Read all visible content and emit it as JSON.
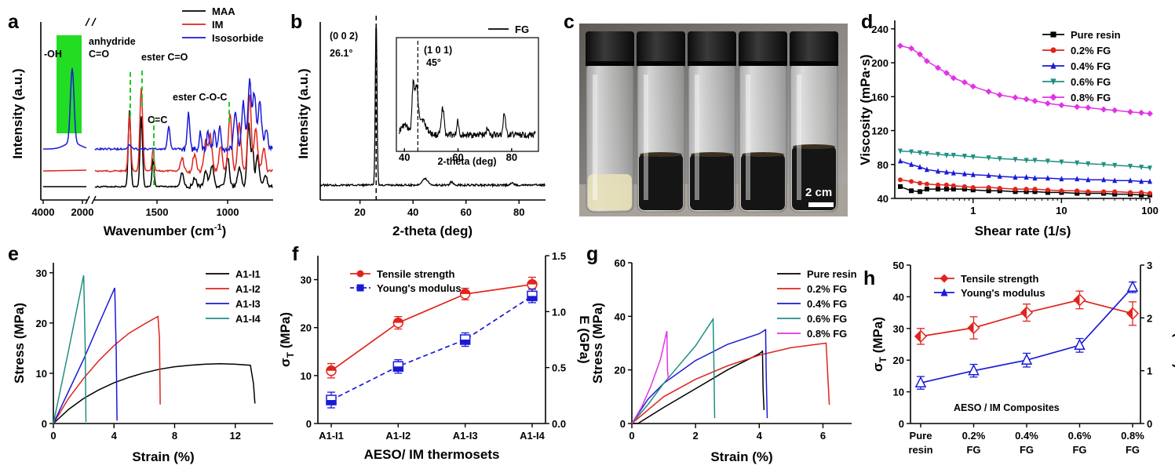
{
  "colors": {
    "black": "#000000",
    "red": "#e0241b",
    "blue": "#1a1ad6",
    "teal": "#1f8f82",
    "magenta": "#e233e6",
    "green_box": "#22dd22",
    "green_dash": "#22cc22"
  },
  "panels": {
    "a": {
      "letter": "a"
    },
    "b": {
      "letter": "b"
    },
    "c": {
      "letter": "c"
    },
    "d": {
      "letter": "d"
    },
    "e": {
      "letter": "e"
    },
    "f": {
      "letter": "f"
    },
    "g": {
      "letter": "g"
    },
    "h": {
      "letter": "h"
    }
  },
  "photo": {
    "scale_label": "2 cm",
    "vials": 5
  },
  "chart_data": [
    {
      "id": "a",
      "type": "line",
      "xlabel": "Wavenumber (cm-1)",
      "ylabel": "Intensity (a.u.)",
      "x_ticks": [
        "4000",
        "2000",
        "1500",
        "1000"
      ],
      "x_break": true,
      "reversed_x": true,
      "series": [
        {
          "name": "MAA"
        },
        {
          "name": "IM"
        },
        {
          "name": "Isosorbide"
        }
      ],
      "annotations": [
        "-OH",
        "anhydride",
        "C=O",
        "ester C=O",
        "ester C-O-C",
        "C=C"
      ]
    },
    {
      "id": "b",
      "type": "line",
      "xlabel": "2-theta (deg)",
      "ylabel": "Intensity (a.u.)",
      "xlim": [
        5,
        90
      ],
      "x_ticks": [
        "20",
        "40",
        "60",
        "80"
      ],
      "series": [
        {
          "name": "FG"
        }
      ],
      "peaks": [
        26.1,
        44.5,
        54.5,
        77.5
      ],
      "annotations": [
        "(0 0 2)",
        "26.1°"
      ],
      "inset": {
        "xlabel": "2-theta (deg)",
        "x_ticks": [
          "40",
          "60",
          "80"
        ],
        "annotations": [
          "(1 0 1)",
          "45°"
        ]
      }
    },
    {
      "id": "d",
      "type": "line",
      "xlabel": "Shear rate (1/s)",
      "ylabel": "Viscosity (mPa·s)",
      "xscale": "log",
      "xlim": [
        0.13,
        100
      ],
      "ylim": [
        40,
        250
      ],
      "x_ticks": [
        "1",
        "10",
        "100"
      ],
      "y_ticks": [
        "40",
        "80",
        "120",
        "160",
        "200",
        "240"
      ],
      "x": [
        0.15,
        0.2,
        0.25,
        0.3,
        0.4,
        0.5,
        0.6,
        0.8,
        1,
        1.5,
        2,
        3,
        4,
        5,
        7,
        10,
        15,
        20,
        30,
        40,
        60,
        80,
        100
      ],
      "series": [
        {
          "name": "Pure resin",
          "values": [
            54,
            49,
            48,
            51,
            51,
            51,
            51,
            51,
            50,
            49,
            49,
            48,
            48,
            48,
            47,
            47,
            46,
            46,
            46,
            45,
            45,
            44,
            44
          ]
        },
        {
          "name": "0.2% FG",
          "values": [
            62,
            60,
            58,
            57,
            56,
            56,
            55,
            54,
            53,
            53,
            52,
            51,
            51,
            51,
            50,
            49,
            49,
            48,
            48,
            48,
            47,
            47,
            46
          ]
        },
        {
          "name": "0.4% FG",
          "values": [
            84,
            80,
            77,
            74,
            72,
            71,
            70,
            69,
            68,
            67,
            66,
            65,
            65,
            64,
            64,
            63,
            63,
            62,
            62,
            61,
            61,
            60,
            60
          ]
        },
        {
          "name": "0.6% FG",
          "values": [
            96,
            95,
            94,
            93,
            92,
            91,
            91,
            90,
            89,
            88,
            87,
            86,
            85,
            85,
            84,
            83,
            82,
            81,
            80,
            79,
            78,
            77,
            76
          ]
        },
        {
          "name": "0.8% FG",
          "values": [
            220,
            217,
            210,
            202,
            194,
            188,
            182,
            177,
            172,
            166,
            162,
            159,
            157,
            155,
            152,
            150,
            148,
            147,
            145,
            144,
            142,
            141,
            140
          ]
        }
      ]
    },
    {
      "id": "e",
      "type": "line",
      "xlabel": "Strain (%)",
      "ylabel": "Stress (MPa)",
      "xlim": [
        0,
        14.5
      ],
      "ylim": [
        0,
        32
      ],
      "x_ticks": [
        "0",
        "4",
        "8",
        "12"
      ],
      "y_ticks": [
        "0",
        "10",
        "20",
        "30"
      ],
      "series": [
        {
          "name": "A1-I1",
          "points": [
            [
              0,
              0
            ],
            [
              1,
              2.8
            ],
            [
              2,
              5
            ],
            [
              3,
              6.7
            ],
            [
              4,
              8.1
            ],
            [
              5,
              9.2
            ],
            [
              6,
              10.1
            ],
            [
              7,
              10.8
            ],
            [
              8,
              11.3
            ],
            [
              9,
              11.6
            ],
            [
              10,
              11.8
            ],
            [
              11,
              11.9
            ],
            [
              12,
              11.8
            ],
            [
              13,
              11.6
            ],
            [
              13.2,
              8
            ],
            [
              13.3,
              4
            ]
          ]
        },
        {
          "name": "A1-I2",
          "points": [
            [
              0,
              0
            ],
            [
              1,
              5
            ],
            [
              2,
              9
            ],
            [
              3,
              12.5
            ],
            [
              4,
              15.5
            ],
            [
              5,
              18
            ],
            [
              6,
              19.8
            ],
            [
              6.9,
              21.3
            ],
            [
              7,
              17
            ],
            [
              7.05,
              3.8
            ]
          ]
        },
        {
          "name": "A1-I3",
          "points": [
            [
              0,
              0
            ],
            [
              1,
              6.4
            ],
            [
              2,
              12.8
            ],
            [
              3,
              19.8
            ],
            [
              4.05,
              27
            ],
            [
              4.15,
              14
            ],
            [
              4.2,
              0.6
            ]
          ]
        },
        {
          "name": "A1-I4",
          "points": [
            [
              0,
              0
            ],
            [
              1,
              14.5
            ],
            [
              2,
              29.5
            ],
            [
              2.1,
              15
            ],
            [
              2.15,
              0.3
            ]
          ]
        }
      ]
    },
    {
      "id": "f",
      "type": "line",
      "xlabel": "AESO/ IM thermosets",
      "ylabel_left": "σT (MPa)",
      "ylabel_right": "E (GPa)",
      "categories": [
        "A1-I1",
        "A1-I2",
        "A1-I3",
        "A1-I4"
      ],
      "ylim_left": [
        0,
        35
      ],
      "ylim_right": [
        0,
        1.5
      ],
      "y_ticks_left": [
        "0",
        "10",
        "20",
        "30"
      ],
      "y_ticks_right": [
        "0.0",
        "0.5",
        "1.0",
        "1.5"
      ],
      "series": [
        {
          "name": "Tensile strength",
          "axis": "left",
          "values": [
            11,
            21,
            27,
            29
          ],
          "errors": [
            1.5,
            1.3,
            1.2,
            1.5
          ]
        },
        {
          "name": "Young's modulus",
          "axis": "right",
          "values": [
            0.21,
            0.51,
            0.75,
            1.14
          ],
          "errors": [
            0.07,
            0.06,
            0.06,
            0.06
          ]
        }
      ]
    },
    {
      "id": "g",
      "type": "line",
      "xlabel": "Strain (%)",
      "ylabel": "Stress (MPa)",
      "xlim": [
        0,
        6.9
      ],
      "ylim": [
        0,
        60
      ],
      "x_ticks": [
        "0",
        "2",
        "4",
        "6"
      ],
      "y_ticks": [
        "0",
        "20",
        "40",
        "60"
      ],
      "series": [
        {
          "name": "Pure resin",
          "points": [
            [
              0,
              0
            ],
            [
              0.2,
              0.1
            ],
            [
              1,
              6
            ],
            [
              2,
              13
            ],
            [
              3,
              20
            ],
            [
              4,
              26
            ],
            [
              4.1,
              27
            ],
            [
              4.12,
              13
            ],
            [
              4.15,
              5
            ]
          ]
        },
        {
          "name": "0.2% FG",
          "points": [
            [
              0,
              0
            ],
            [
              1,
              10
            ],
            [
              2,
              16.5
            ],
            [
              3,
              21.5
            ],
            [
              4,
              25.5
            ],
            [
              5,
              28.3
            ],
            [
              6.1,
              30
            ],
            [
              6.15,
              18
            ],
            [
              6.2,
              7
            ]
          ]
        },
        {
          "name": "0.4% FG",
          "points": [
            [
              0,
              0
            ],
            [
              0.5,
              9
            ],
            [
              1,
              15
            ],
            [
              2,
              23.5
            ],
            [
              3,
              29.5
            ],
            [
              4,
              33.5
            ],
            [
              4.2,
              35
            ],
            [
              4.22,
              18
            ],
            [
              4.25,
              2
            ]
          ]
        },
        {
          "name": "0.6% FG",
          "points": [
            [
              0,
              0
            ],
            [
              0.5,
              7
            ],
            [
              1,
              15
            ],
            [
              1.5,
              22
            ],
            [
              2,
              29
            ],
            [
              2.55,
              39
            ],
            [
              2.58,
              20
            ],
            [
              2.6,
              2
            ]
          ]
        },
        {
          "name": "0.8% FG",
          "points": [
            [
              0,
              0
            ],
            [
              0.3,
              6
            ],
            [
              0.6,
              14
            ],
            [
              0.9,
              24
            ],
            [
              1.1,
              34.5
            ],
            [
              1.12,
              20
            ],
            [
              1.15,
              16
            ]
          ]
        }
      ]
    },
    {
      "id": "h",
      "type": "line",
      "xlabel": "",
      "ylabel_left": "σT (MPa)",
      "ylabel_right": "E (GPa)",
      "categories": [
        "Pure resin",
        "0.2% FG",
        "0.4% FG",
        "0.6% FG",
        "0.8% FG"
      ],
      "ylim_left": [
        0,
        50
      ],
      "ylim_right": [
        0,
        3
      ],
      "y_ticks_left": [
        "0",
        "10",
        "20",
        "30",
        "40",
        "50"
      ],
      "y_ticks_right": [
        "0",
        "1",
        "2",
        "3"
      ],
      "annotation": "AESO / IM Composites",
      "series": [
        {
          "name": "Tensile strength",
          "axis": "left",
          "values": [
            27.5,
            30.2,
            35,
            39,
            34.7
          ],
          "errors": [
            2.5,
            3.5,
            2.7,
            2.8,
            3.7
          ]
        },
        {
          "name": "Young's modulus",
          "axis": "right",
          "values": [
            0.77,
            1.0,
            1.2,
            1.48,
            2.58
          ],
          "errors": [
            0.12,
            0.12,
            0.13,
            0.13,
            0.1
          ]
        }
      ]
    }
  ]
}
